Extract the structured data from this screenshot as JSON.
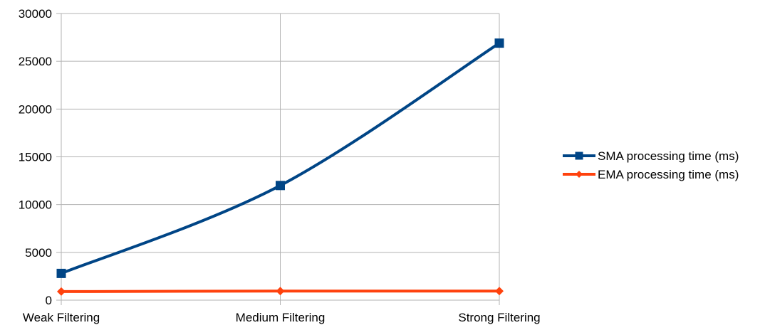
{
  "chart_data": {
    "type": "line",
    "title": "",
    "xlabel": "",
    "ylabel": "",
    "categories": [
      "Weak Filtering",
      "Medium Filtering",
      "Strong Filtering"
    ],
    "ylim": [
      0,
      30000
    ],
    "yticks": [
      0,
      5000,
      10000,
      15000,
      20000,
      25000,
      30000
    ],
    "grid": true,
    "legend_position": "right",
    "series": [
      {
        "name": "SMA processing time (ms)",
        "values": [
          2800,
          12000,
          26900
        ],
        "color": "#004586",
        "marker": "square",
        "smooth": true
      },
      {
        "name": "EMA processing time (ms)",
        "values": [
          900,
          950,
          950
        ],
        "color": "#ff420e",
        "marker": "diamond",
        "smooth": false
      }
    ]
  }
}
